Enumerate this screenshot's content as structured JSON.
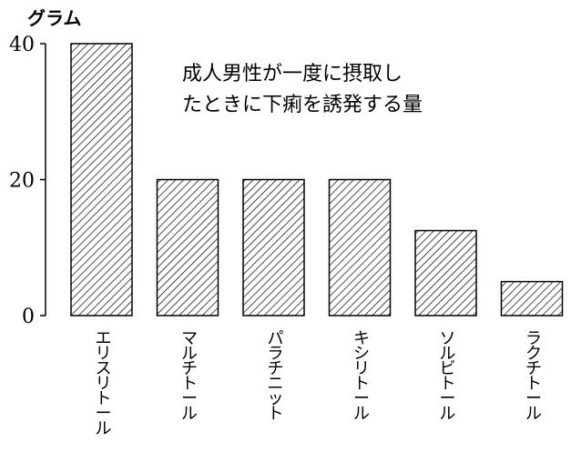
{
  "chart_data": {
    "type": "bar",
    "title_lines": [
      "成人男性が一度に摂取し",
      "たときに下痢を誘発する量"
    ],
    "ylabel": "グラム",
    "xlabel": "",
    "ylim": [
      0,
      40
    ],
    "yticks": [
      "0",
      "20",
      "40"
    ],
    "categories": [
      "エリスリトール",
      "マルチトール",
      "パラチニット",
      "キシリトール",
      "ソルビトール",
      "ラクチトール"
    ],
    "values": [
      40,
      20,
      20,
      20,
      12.5,
      5
    ],
    "bar_fill": "hatched",
    "grid": false,
    "legend": "none"
  }
}
